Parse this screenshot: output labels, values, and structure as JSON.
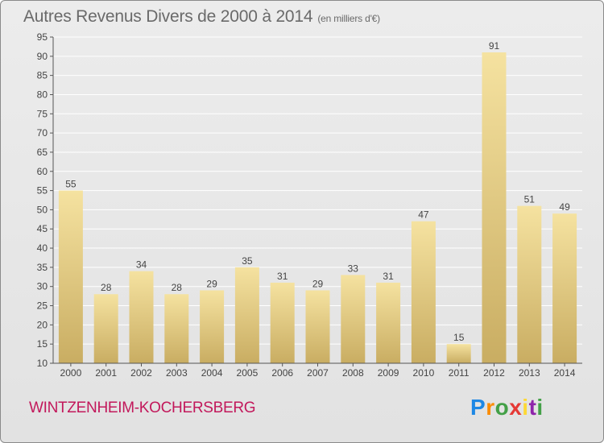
{
  "header": {
    "title": "Autres Revenus Divers de 2000 à 2014",
    "subtitle": "(en milliers d'€)"
  },
  "footer": {
    "commune": "WINTZENHEIM-KOCHERSBERG",
    "logo_letters": [
      "P",
      "r",
      "o",
      "x",
      "i",
      "t",
      "i"
    ],
    "logo_colors": [
      "#1e88e5",
      "#fb8c00",
      "#43a047",
      "#e53935",
      "#fdd835",
      "#8e24aa",
      "#43a047"
    ]
  },
  "colors": {
    "bar_light": "#f5e2a0",
    "bar_dark": "#c9ad62",
    "axis": "#555555",
    "grid": "#ffffff"
  },
  "chart_data": {
    "type": "bar",
    "title": "Autres Revenus Divers de 2000 à 2014",
    "xlabel": "",
    "ylabel": "",
    "categories": [
      "2000",
      "2001",
      "2002",
      "2003",
      "2004",
      "2005",
      "2006",
      "2007",
      "2008",
      "2009",
      "2010",
      "2011",
      "2012",
      "2013",
      "2014"
    ],
    "values": [
      55,
      28,
      34,
      28,
      29,
      35,
      31,
      29,
      33,
      31,
      47,
      15,
      91,
      51,
      49
    ],
    "ylim": [
      10,
      95
    ],
    "yticks": [
      10,
      15,
      20,
      25,
      30,
      35,
      40,
      45,
      50,
      55,
      60,
      65,
      70,
      75,
      80,
      85,
      90,
      95
    ],
    "grid": true,
    "legend": "none"
  }
}
